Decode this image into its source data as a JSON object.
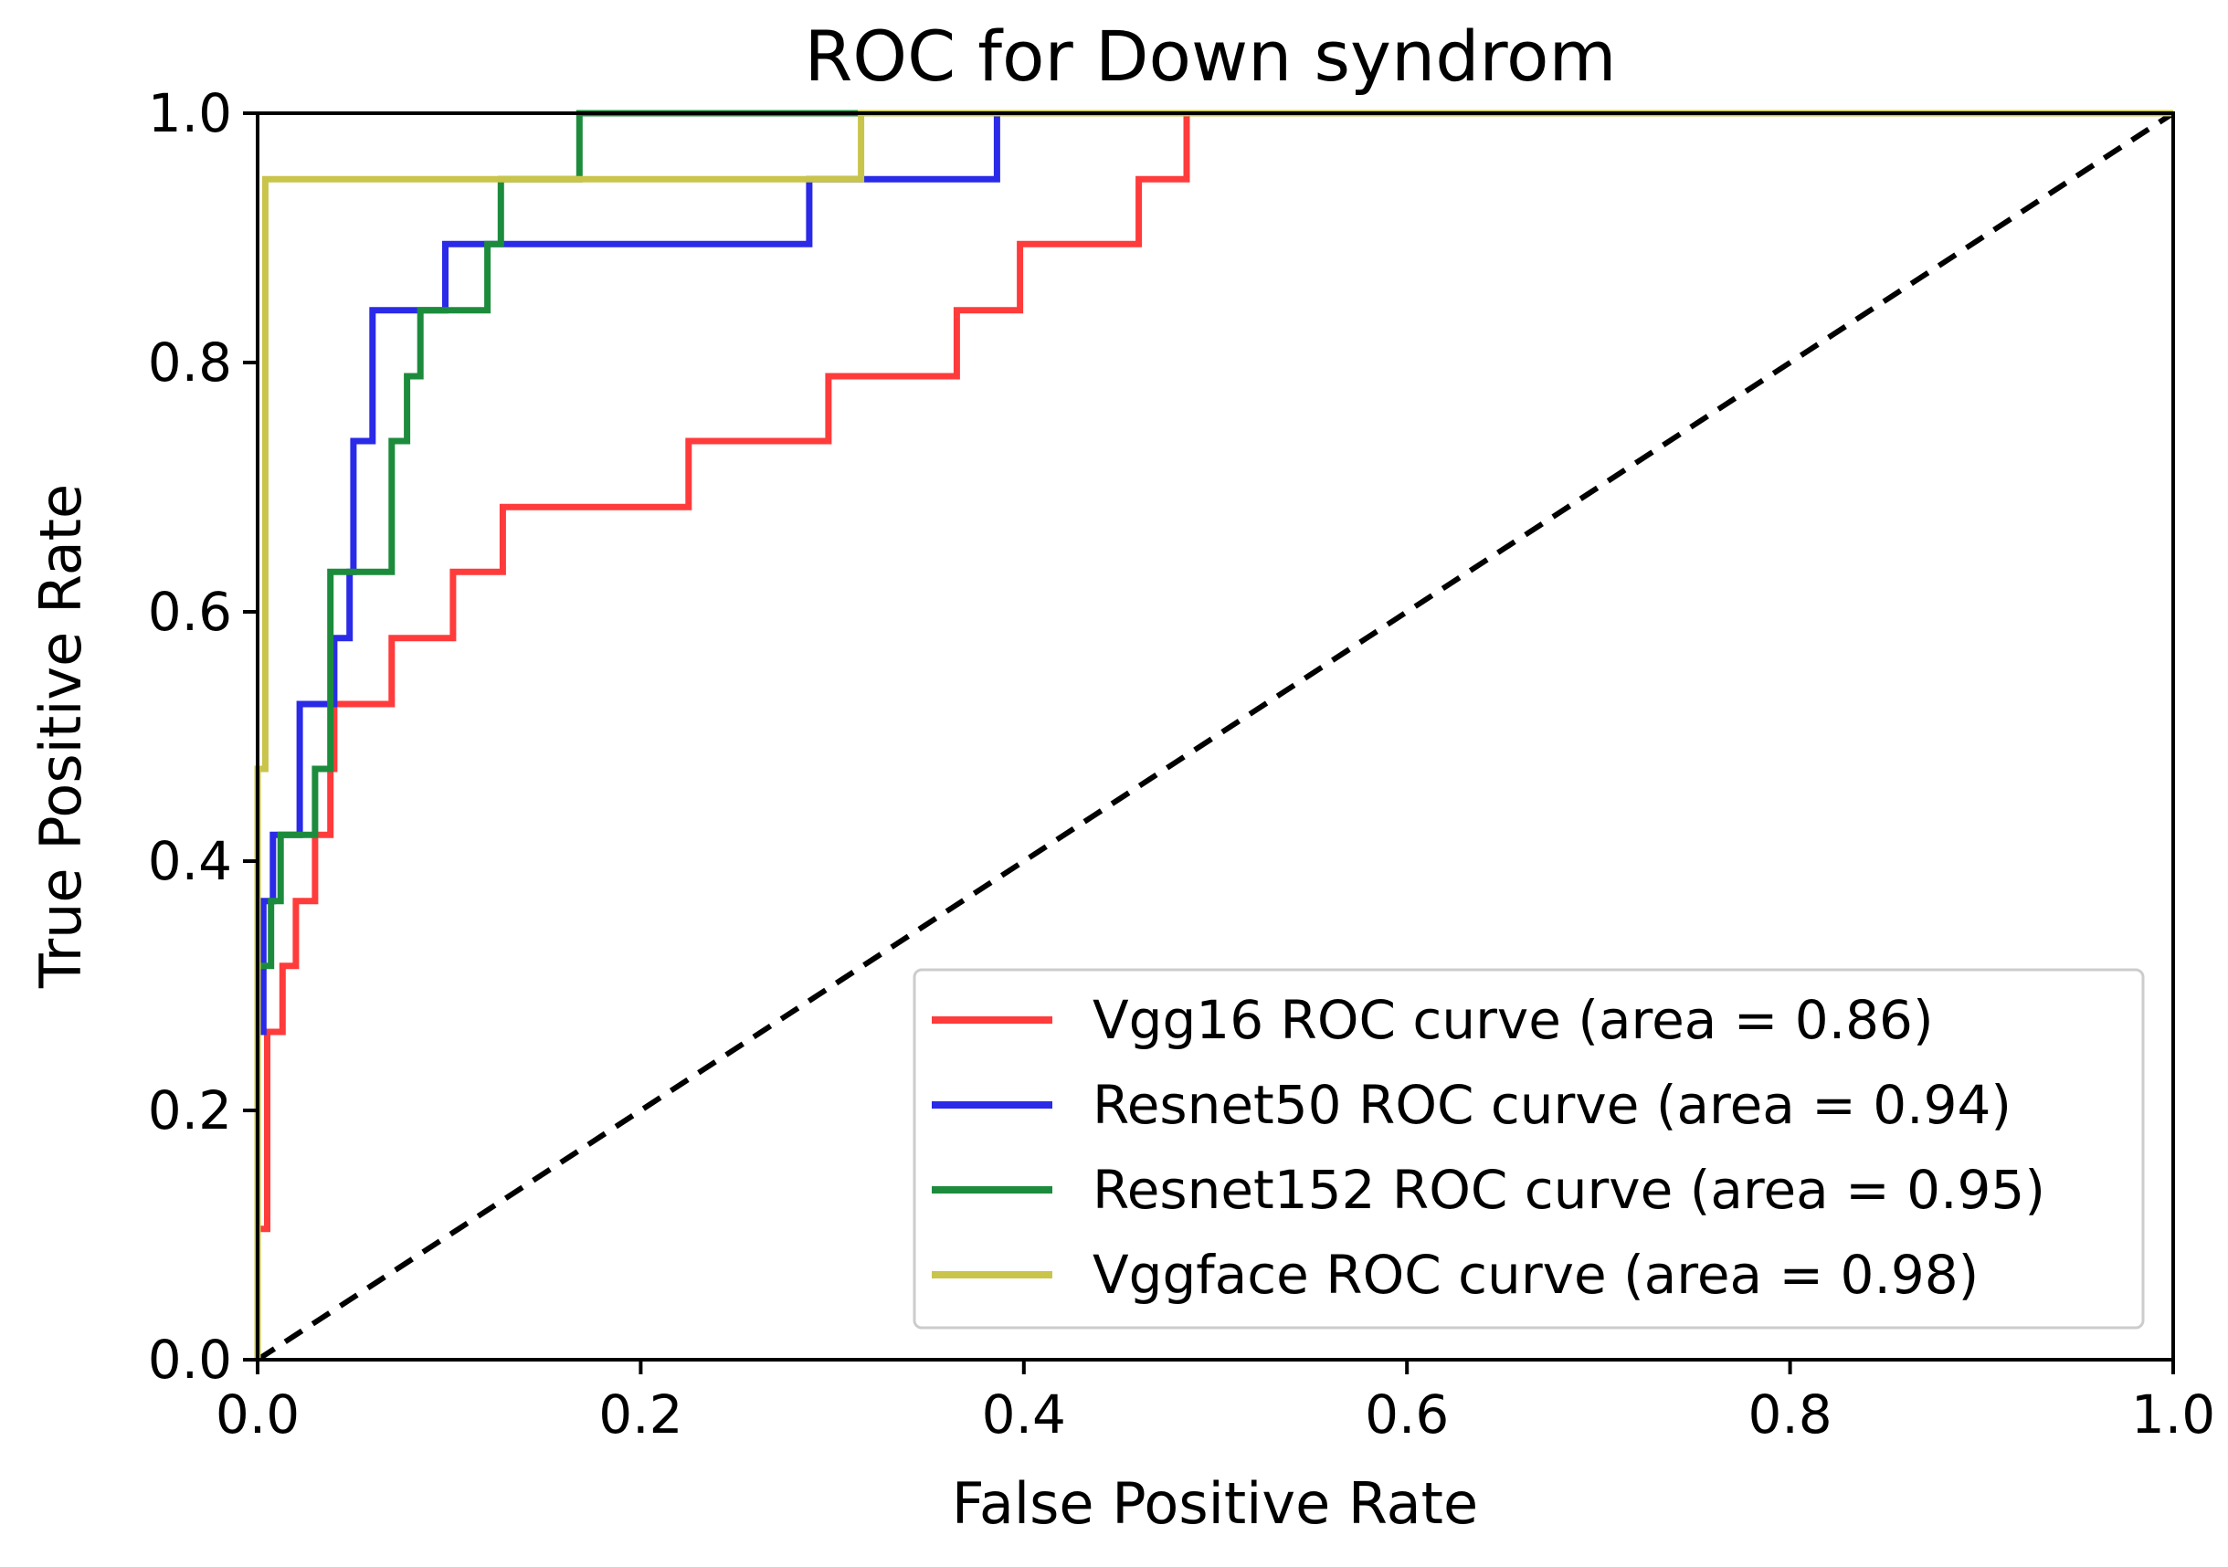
{
  "chart_data": {
    "type": "line",
    "title": "ROC for Down syndrom",
    "xlabel": "False Positive Rate",
    "ylabel": "True Positive Rate",
    "xlim": [
      0.0,
      1.0
    ],
    "ylim": [
      0.0,
      1.0
    ],
    "xticks": [
      "0.0",
      "0.2",
      "0.4",
      "0.6",
      "0.8",
      "1.0"
    ],
    "yticks": [
      "0.0",
      "0.2",
      "0.4",
      "0.6",
      "0.8",
      "1.0"
    ],
    "grid": false,
    "legend_position": "bottom-right",
    "diagonal": {
      "name": "chance",
      "color": "#000000",
      "style": "dashed",
      "points": [
        [
          0,
          0
        ],
        [
          1,
          1
        ]
      ]
    },
    "series": [
      {
        "name": "Vgg16 ROC curve (area = 0.86)",
        "color": "#ff3b3b",
        "points": [
          [
            0.0,
            0.0
          ],
          [
            0.0,
            0.105
          ],
          [
            0.005,
            0.105
          ],
          [
            0.005,
            0.263
          ],
          [
            0.013,
            0.263
          ],
          [
            0.013,
            0.316
          ],
          [
            0.02,
            0.316
          ],
          [
            0.02,
            0.368
          ],
          [
            0.03,
            0.368
          ],
          [
            0.03,
            0.421
          ],
          [
            0.038,
            0.421
          ],
          [
            0.038,
            0.474
          ],
          [
            0.04,
            0.474
          ],
          [
            0.04,
            0.526
          ],
          [
            0.07,
            0.526
          ],
          [
            0.07,
            0.579
          ],
          [
            0.102,
            0.579
          ],
          [
            0.102,
            0.632
          ],
          [
            0.128,
            0.632
          ],
          [
            0.128,
            0.684
          ],
          [
            0.225,
            0.684
          ],
          [
            0.225,
            0.737
          ],
          [
            0.298,
            0.737
          ],
          [
            0.298,
            0.789
          ],
          [
            0.365,
            0.789
          ],
          [
            0.365,
            0.842
          ],
          [
            0.398,
            0.842
          ],
          [
            0.398,
            0.895
          ],
          [
            0.46,
            0.895
          ],
          [
            0.46,
            0.947
          ],
          [
            0.485,
            0.947
          ],
          [
            0.485,
            1.0
          ],
          [
            1.0,
            1.0
          ]
        ]
      },
      {
        "name": "Resnet50 ROC curve (area = 0.94)",
        "color": "#2a2ae8",
        "points": [
          [
            0.0,
            0.0
          ],
          [
            0.0,
            0.263
          ],
          [
            0.003,
            0.263
          ],
          [
            0.003,
            0.368
          ],
          [
            0.008,
            0.368
          ],
          [
            0.008,
            0.421
          ],
          [
            0.022,
            0.421
          ],
          [
            0.022,
            0.526
          ],
          [
            0.04,
            0.526
          ],
          [
            0.04,
            0.579
          ],
          [
            0.048,
            0.579
          ],
          [
            0.048,
            0.632
          ],
          [
            0.05,
            0.632
          ],
          [
            0.05,
            0.737
          ],
          [
            0.06,
            0.737
          ],
          [
            0.06,
            0.842
          ],
          [
            0.098,
            0.842
          ],
          [
            0.098,
            0.895
          ],
          [
            0.288,
            0.895
          ],
          [
            0.288,
            0.947
          ],
          [
            0.386,
            0.947
          ],
          [
            0.386,
            1.0
          ],
          [
            1.0,
            1.0
          ]
        ]
      },
      {
        "name": "Resnet152 ROC curve (area = 0.95)",
        "color": "#1c8c3c",
        "points": [
          [
            0.0,
            0.0
          ],
          [
            0.0,
            0.316
          ],
          [
            0.007,
            0.316
          ],
          [
            0.007,
            0.368
          ],
          [
            0.012,
            0.368
          ],
          [
            0.012,
            0.421
          ],
          [
            0.03,
            0.421
          ],
          [
            0.03,
            0.474
          ],
          [
            0.038,
            0.474
          ],
          [
            0.038,
            0.632
          ],
          [
            0.07,
            0.632
          ],
          [
            0.07,
            0.737
          ],
          [
            0.078,
            0.737
          ],
          [
            0.078,
            0.789
          ],
          [
            0.085,
            0.789
          ],
          [
            0.085,
            0.842
          ],
          [
            0.12,
            0.842
          ],
          [
            0.12,
            0.895
          ],
          [
            0.127,
            0.895
          ],
          [
            0.127,
            0.947
          ],
          [
            0.168,
            0.947
          ],
          [
            0.168,
            1.0
          ],
          [
            1.0,
            1.0
          ]
        ]
      },
      {
        "name": "Vggface ROC curve (area = 0.98)",
        "color": "#c9c44a",
        "points": [
          [
            0.0,
            0.0
          ],
          [
            0.0,
            0.474
          ],
          [
            0.004,
            0.474
          ],
          [
            0.004,
            0.947
          ],
          [
            0.315,
            0.947
          ],
          [
            0.315,
            1.0
          ],
          [
            1.0,
            1.0
          ]
        ]
      }
    ]
  }
}
